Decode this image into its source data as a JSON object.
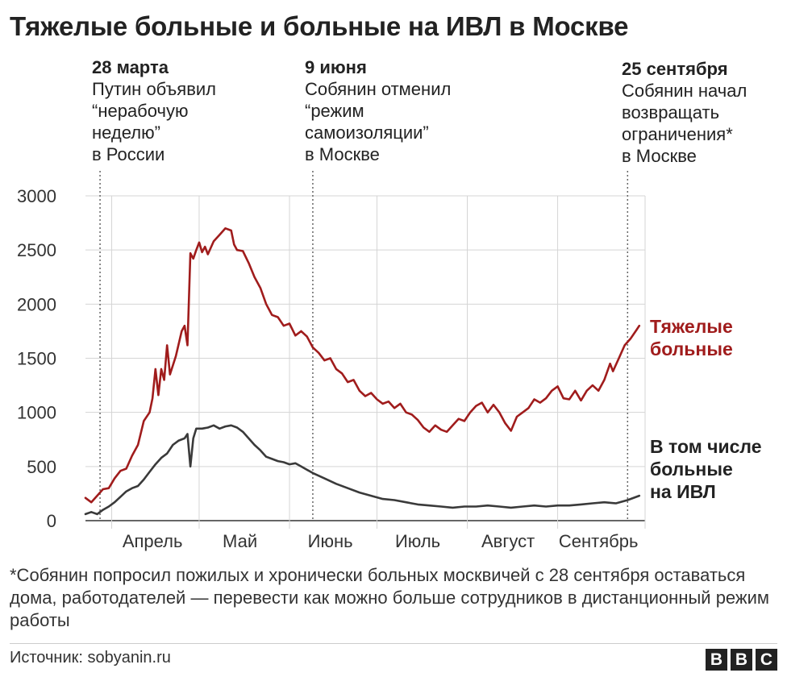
{
  "chart_data": {
    "type": "line",
    "title": "Тяжелые больные и больные на ИВЛ в Москве",
    "ylim": [
      0,
      3000
    ],
    "yticks": [
      0,
      500,
      1000,
      1500,
      2000,
      2500,
      3000
    ],
    "xlim": [
      "2020-03-23",
      "2020-10-01"
    ],
    "month_labels": [
      {
        "date": "2020-04-15",
        "label": "Апрель"
      },
      {
        "date": "2020-05-15",
        "label": "Май"
      },
      {
        "date": "2020-06-15",
        "label": "Июнь"
      },
      {
        "date": "2020-07-15",
        "label": "Июль"
      },
      {
        "date": "2020-08-15",
        "label": "Август"
      },
      {
        "date": "2020-09-15",
        "label": "Сентябрь"
      }
    ],
    "month_boundaries": [
      "2020-04-01",
      "2020-05-01",
      "2020-06-01",
      "2020-07-01",
      "2020-08-01",
      "2020-09-01",
      "2020-10-01"
    ],
    "grid": true,
    "annotations": [
      {
        "date": "2020-03-28",
        "date_label": "28 марта",
        "text": "Путин объявил\n“нерабочую\nнеделю”\nв России"
      },
      {
        "date": "2020-06-09",
        "date_label": "9 июня",
        "text": "Собянин отменил\n“режим\nсамоизоляции”\nв Москве"
      },
      {
        "date": "2020-09-25",
        "date_label": "25 сентября",
        "text": "Собянин начал\nвозвращать\nограничения*\nв Москве"
      }
    ],
    "series": [
      {
        "name": "Тяжелые больные",
        "color": "#a01c1c",
        "points": [
          [
            "2020-03-23",
            210
          ],
          [
            "2020-03-25",
            170
          ],
          [
            "2020-03-27",
            230
          ],
          [
            "2020-03-29",
            290
          ],
          [
            "2020-03-31",
            300
          ],
          [
            "2020-04-02",
            390
          ],
          [
            "2020-04-04",
            460
          ],
          [
            "2020-04-06",
            480
          ],
          [
            "2020-04-08",
            600
          ],
          [
            "2020-04-10",
            700
          ],
          [
            "2020-04-12",
            920
          ],
          [
            "2020-04-14",
            1000
          ],
          [
            "2020-04-15",
            1130
          ],
          [
            "2020-04-16",
            1400
          ],
          [
            "2020-04-17",
            1160
          ],
          [
            "2020-04-18",
            1400
          ],
          [
            "2020-04-19",
            1300
          ],
          [
            "2020-04-20",
            1620
          ],
          [
            "2020-04-21",
            1350
          ],
          [
            "2020-04-23",
            1520
          ],
          [
            "2020-04-25",
            1750
          ],
          [
            "2020-04-26",
            1800
          ],
          [
            "2020-04-27",
            1620
          ],
          [
            "2020-04-28",
            2470
          ],
          [
            "2020-04-29",
            2420
          ],
          [
            "2020-04-30",
            2500
          ],
          [
            "2020-05-01",
            2570
          ],
          [
            "2020-05-02",
            2480
          ],
          [
            "2020-05-03",
            2530
          ],
          [
            "2020-05-04",
            2460
          ],
          [
            "2020-05-06",
            2580
          ],
          [
            "2020-05-08",
            2640
          ],
          [
            "2020-05-10",
            2700
          ],
          [
            "2020-05-12",
            2680
          ],
          [
            "2020-05-13",
            2550
          ],
          [
            "2020-05-14",
            2500
          ],
          [
            "2020-05-16",
            2490
          ],
          [
            "2020-05-18",
            2380
          ],
          [
            "2020-05-20",
            2250
          ],
          [
            "2020-05-22",
            2150
          ],
          [
            "2020-05-24",
            2000
          ],
          [
            "2020-05-26",
            1900
          ],
          [
            "2020-05-28",
            1880
          ],
          [
            "2020-05-30",
            1800
          ],
          [
            "2020-06-01",
            1820
          ],
          [
            "2020-06-03",
            1710
          ],
          [
            "2020-06-05",
            1750
          ],
          [
            "2020-06-07",
            1700
          ],
          [
            "2020-06-09",
            1600
          ],
          [
            "2020-06-11",
            1550
          ],
          [
            "2020-06-13",
            1480
          ],
          [
            "2020-06-15",
            1500
          ],
          [
            "2020-06-17",
            1400
          ],
          [
            "2020-06-19",
            1360
          ],
          [
            "2020-06-21",
            1280
          ],
          [
            "2020-06-23",
            1300
          ],
          [
            "2020-06-25",
            1200
          ],
          [
            "2020-06-27",
            1150
          ],
          [
            "2020-06-29",
            1180
          ],
          [
            "2020-07-01",
            1120
          ],
          [
            "2020-07-03",
            1080
          ],
          [
            "2020-07-05",
            1100
          ],
          [
            "2020-07-07",
            1040
          ],
          [
            "2020-07-09",
            1080
          ],
          [
            "2020-07-11",
            1000
          ],
          [
            "2020-07-13",
            980
          ],
          [
            "2020-07-15",
            930
          ],
          [
            "2020-07-17",
            860
          ],
          [
            "2020-07-19",
            820
          ],
          [
            "2020-07-21",
            880
          ],
          [
            "2020-07-23",
            840
          ],
          [
            "2020-07-25",
            820
          ],
          [
            "2020-07-27",
            880
          ],
          [
            "2020-07-29",
            940
          ],
          [
            "2020-07-31",
            920
          ],
          [
            "2020-08-02",
            1000
          ],
          [
            "2020-08-04",
            1060
          ],
          [
            "2020-08-06",
            1090
          ],
          [
            "2020-08-08",
            1000
          ],
          [
            "2020-08-10",
            1070
          ],
          [
            "2020-08-12",
            1000
          ],
          [
            "2020-08-14",
            900
          ],
          [
            "2020-08-16",
            830
          ],
          [
            "2020-08-18",
            960
          ],
          [
            "2020-08-20",
            1000
          ],
          [
            "2020-08-22",
            1040
          ],
          [
            "2020-08-24",
            1120
          ],
          [
            "2020-08-26",
            1090
          ],
          [
            "2020-08-28",
            1130
          ],
          [
            "2020-08-30",
            1200
          ],
          [
            "2020-09-01",
            1240
          ],
          [
            "2020-09-03",
            1130
          ],
          [
            "2020-09-05",
            1120
          ],
          [
            "2020-09-07",
            1200
          ],
          [
            "2020-09-09",
            1110
          ],
          [
            "2020-09-11",
            1200
          ],
          [
            "2020-09-13",
            1250
          ],
          [
            "2020-09-15",
            1200
          ],
          [
            "2020-09-17",
            1300
          ],
          [
            "2020-09-19",
            1450
          ],
          [
            "2020-09-20",
            1380
          ],
          [
            "2020-09-22",
            1500
          ],
          [
            "2020-09-24",
            1620
          ],
          [
            "2020-09-26",
            1680
          ],
          [
            "2020-09-28",
            1760
          ],
          [
            "2020-09-29",
            1800
          ]
        ]
      },
      {
        "name": "В том числе больные на ИВЛ",
        "color": "#3a3a3a",
        "points": [
          [
            "2020-03-23",
            60
          ],
          [
            "2020-03-25",
            80
          ],
          [
            "2020-03-27",
            60
          ],
          [
            "2020-03-29",
            100
          ],
          [
            "2020-03-31",
            130
          ],
          [
            "2020-04-02",
            170
          ],
          [
            "2020-04-04",
            220
          ],
          [
            "2020-04-06",
            270
          ],
          [
            "2020-04-08",
            300
          ],
          [
            "2020-04-10",
            320
          ],
          [
            "2020-04-12",
            380
          ],
          [
            "2020-04-14",
            450
          ],
          [
            "2020-04-16",
            520
          ],
          [
            "2020-04-18",
            580
          ],
          [
            "2020-04-20",
            620
          ],
          [
            "2020-04-22",
            700
          ],
          [
            "2020-04-24",
            740
          ],
          [
            "2020-04-26",
            760
          ],
          [
            "2020-04-27",
            800
          ],
          [
            "2020-04-28",
            500
          ],
          [
            "2020-04-29",
            760
          ],
          [
            "2020-04-30",
            850
          ],
          [
            "2020-05-02",
            850
          ],
          [
            "2020-05-04",
            860
          ],
          [
            "2020-05-06",
            880
          ],
          [
            "2020-05-08",
            850
          ],
          [
            "2020-05-10",
            870
          ],
          [
            "2020-05-12",
            880
          ],
          [
            "2020-05-14",
            860
          ],
          [
            "2020-05-16",
            820
          ],
          [
            "2020-05-18",
            760
          ],
          [
            "2020-05-20",
            700
          ],
          [
            "2020-05-22",
            650
          ],
          [
            "2020-05-24",
            590
          ],
          [
            "2020-05-26",
            570
          ],
          [
            "2020-05-28",
            550
          ],
          [
            "2020-05-30",
            540
          ],
          [
            "2020-06-01",
            520
          ],
          [
            "2020-06-03",
            530
          ],
          [
            "2020-06-05",
            500
          ],
          [
            "2020-06-09",
            440
          ],
          [
            "2020-06-13",
            390
          ],
          [
            "2020-06-17",
            340
          ],
          [
            "2020-06-21",
            300
          ],
          [
            "2020-06-25",
            260
          ],
          [
            "2020-06-29",
            230
          ],
          [
            "2020-07-03",
            200
          ],
          [
            "2020-07-07",
            190
          ],
          [
            "2020-07-11",
            170
          ],
          [
            "2020-07-15",
            150
          ],
          [
            "2020-07-19",
            140
          ],
          [
            "2020-07-23",
            130
          ],
          [
            "2020-07-27",
            120
          ],
          [
            "2020-07-31",
            130
          ],
          [
            "2020-08-04",
            130
          ],
          [
            "2020-08-08",
            140
          ],
          [
            "2020-08-12",
            130
          ],
          [
            "2020-08-16",
            120
          ],
          [
            "2020-08-20",
            130
          ],
          [
            "2020-08-24",
            140
          ],
          [
            "2020-08-28",
            130
          ],
          [
            "2020-09-01",
            140
          ],
          [
            "2020-09-05",
            140
          ],
          [
            "2020-09-09",
            150
          ],
          [
            "2020-09-13",
            160
          ],
          [
            "2020-09-17",
            170
          ],
          [
            "2020-09-21",
            160
          ],
          [
            "2020-09-25",
            190
          ],
          [
            "2020-09-29",
            230
          ]
        ]
      }
    ]
  },
  "series_labels": {
    "severe": [
      "Тяжелые",
      "больные"
    ],
    "ventilation": [
      "В том числе",
      "больные",
      "на ИВЛ"
    ]
  },
  "footnote": "*Собянин попросил пожилых и хронически больных москвичей с 28 сентября оставаться дома, работодателей — перевести как можно больше сотрудников в дистанционный режим работы",
  "source": "Источник: sobyanin.ru",
  "logo": [
    "B",
    "B",
    "C"
  ],
  "colors": {
    "severe": "#a01c1c",
    "ventilation": "#3a3a3a",
    "grid": "#d5d5d5",
    "axis": "#333333"
  }
}
